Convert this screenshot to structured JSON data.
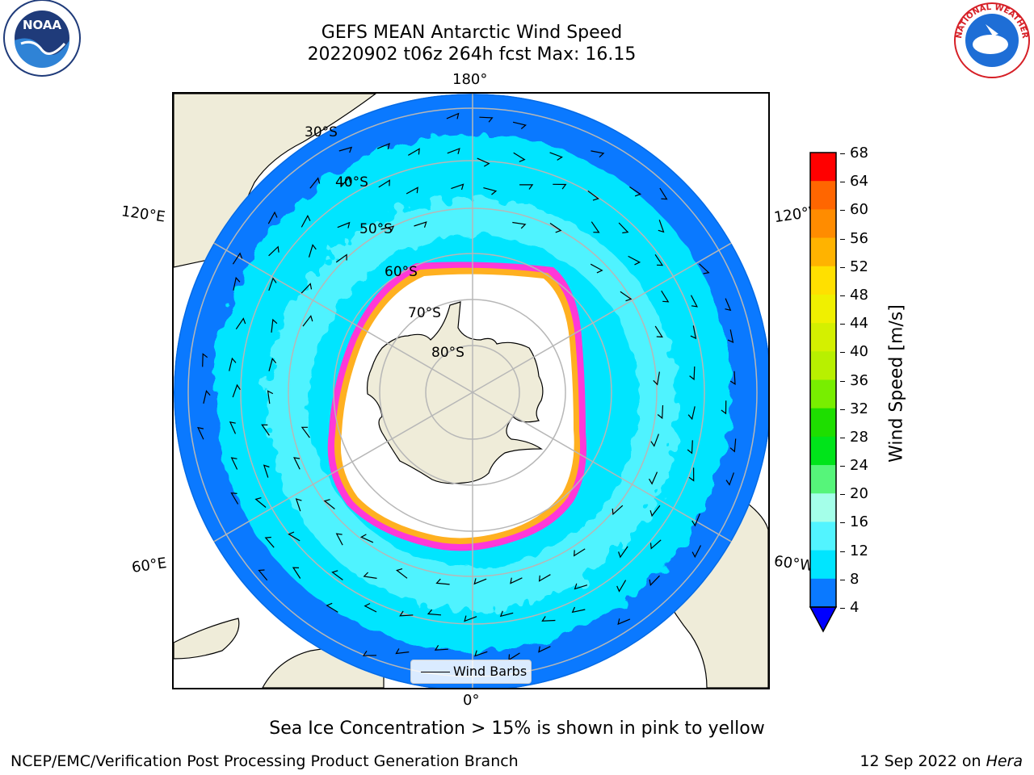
{
  "header": {
    "title_line1": "GEFS MEAN Antarctic Wind Speed",
    "title_line2": "20220902 t06z 264h fcst   Max: 16.15"
  },
  "logos": {
    "noaa_text": "NOAA",
    "nws_text": "NATIONAL WEATHER SERVICE"
  },
  "map": {
    "lon_labels": {
      "top": "180°",
      "bottom": "0°",
      "upper_left": "120°E",
      "upper_right": "120°W",
      "lower_left": "60°E",
      "lower_right": "60°W"
    },
    "lat_labels": [
      "30°S",
      "40°S",
      "50°S",
      "60°S",
      "70°S",
      "80°S"
    ],
    "legend_label": "Wind Barbs",
    "colors": {
      "land": "#efecd9",
      "ocean_4_8": "#0a79ff",
      "ocean_8_12": "#00e5ff",
      "ocean_12_16": "#50f3ff",
      "ice_edge": "#ff38d8",
      "ice_inner": "#ffb020",
      "grid": "#b7b7b7"
    }
  },
  "colorbar": {
    "label": "Wind Speed [m/s]",
    "ticks": [
      "68",
      "64",
      "60",
      "56",
      "52",
      "48",
      "44",
      "40",
      "36",
      "32",
      "28",
      "24",
      "20",
      "16",
      "12",
      "8",
      "4"
    ],
    "colors": [
      "#ff0000",
      "#ff3300",
      "#ff6600",
      "#ff8c00",
      "#ffb300",
      "#ffe000",
      "#f0f000",
      "#d4f000",
      "#b8f000",
      "#78ee00",
      "#1ede00",
      "#00e41a",
      "#56f57a",
      "#a4ffe9",
      "#52f4ff",
      "#00e5ff",
      "#0a79ff"
    ],
    "extend_color": "#0000ff"
  },
  "caption": "Sea Ice Concentration > 15% is shown in pink to yellow",
  "footer": {
    "left": "NCEP/EMC/Verification Post Processing Product Generation Branch",
    "right_prefix": "12 Sep 2022 on ",
    "right_machine": "Hera"
  }
}
